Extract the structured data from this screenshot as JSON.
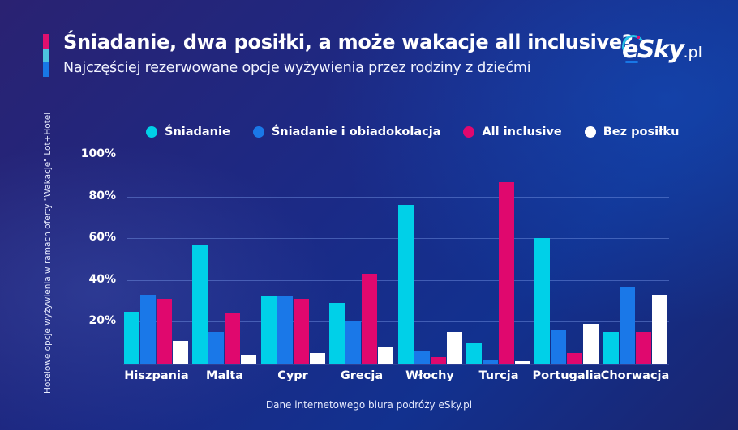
{
  "header": {
    "title": "Śniadanie, dwa posiłki, a może wakacje all inclusive?",
    "subtitle": "Najczęściej rezerwowane opcje wyżywienia przez rodziny z dziećmi",
    "accent_colors": [
      "#e0106f",
      "#4cc4df",
      "#1877e6"
    ]
  },
  "logo": {
    "name": "eSky",
    "suffix": ".pl"
  },
  "source": "Dane internetowego biura podróży eSky.pl",
  "chart_data": {
    "type": "bar",
    "title": "Śniadanie, dwa posiłki, a może wakacje all inclusive?",
    "subtitle": "Najczęściej rezerwowane opcje wyżywienia przez rodziny z dziećmi",
    "xlabel": "",
    "ylabel": "Hotelowe opcje wyżywienia w ramach oferty \"Wakacje\" Lot+Hotel",
    "ylim": [
      0,
      100
    ],
    "yticks": [
      20,
      40,
      60,
      80,
      100
    ],
    "ytick_labels": [
      "20%",
      "40%",
      "60%",
      "80%",
      "100%"
    ],
    "grid": true,
    "legend_position": "top",
    "categories": [
      "Hiszpania",
      "Malta",
      "Cypr",
      "Grecja",
      "Włochy",
      "Turcja",
      "Portugalia",
      "Chorwacja"
    ],
    "series": [
      {
        "name": "Śniadanie",
        "color": "#00d0e8",
        "values": [
          25,
          57,
          32,
          29,
          76,
          10,
          60,
          15
        ]
      },
      {
        "name": "Śniadanie i obiadokolacja",
        "color": "#1a78e8",
        "values": [
          33,
          15,
          32,
          20,
          6,
          2,
          16,
          37
        ]
      },
      {
        "name": "All inclusive",
        "color": "#e0086e",
        "values": [
          31,
          24,
          31,
          43,
          3,
          87,
          5,
          15
        ]
      },
      {
        "name": "Bez posiłku",
        "color": "#ffffff",
        "values": [
          11,
          4,
          5,
          8,
          15,
          1,
          19,
          33
        ]
      }
    ],
    "source": "Dane internetowego biura podróży eSky.pl"
  }
}
